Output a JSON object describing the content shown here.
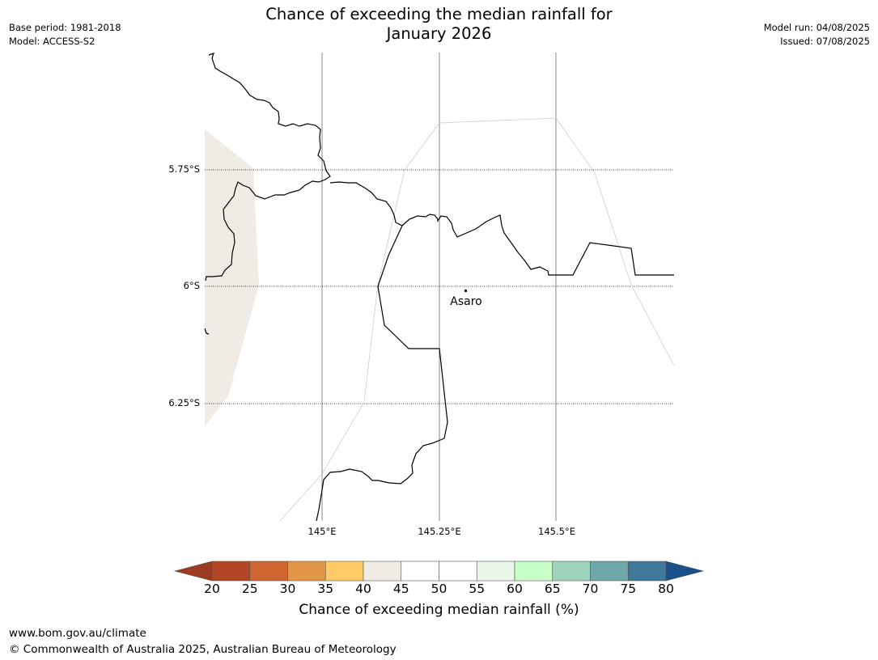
{
  "header": {
    "title_line1": "Chance of exceeding the median rainfall for",
    "title_line2": "January 2026",
    "base_period": "Base period: 1981-2018",
    "model": "Model: ACCESS-S2",
    "model_run": "Model run: 04/08/2025",
    "issued": "Issued: 07/08/2025"
  },
  "map": {
    "lat_labels": [
      "5.75°S",
      "6°S",
      "6.25°S"
    ],
    "lon_labels": [
      "145°E",
      "145.25°E",
      "145.5°E"
    ],
    "place": {
      "name": "Asaro"
    },
    "shaded_zone_color": "#f0ebe5",
    "shaded_zone_category": "40-45"
  },
  "colorbar": {
    "title": "Chance of exceeding median rainfall (%)",
    "ticks": [
      "20",
      "25",
      "30",
      "35",
      "40",
      "45",
      "50",
      "55",
      "60",
      "65",
      "70",
      "75",
      "80"
    ],
    "under_color": "#9c3b22",
    "over_color": "#1a4f8a",
    "colors": [
      "#b24625",
      "#cf6631",
      "#e3954a",
      "#fecb66",
      "#f0ebe5",
      "#ffffff",
      "#ffffff",
      "#e8f7e8",
      "#c8fec8",
      "#9fd3bb",
      "#6fa6a8",
      "#40789a"
    ]
  },
  "footer": {
    "url": "www.bom.gov.au/climate",
    "copyright": "© Commonwealth of Australia 2025, Australian Bureau of Meteorology"
  }
}
